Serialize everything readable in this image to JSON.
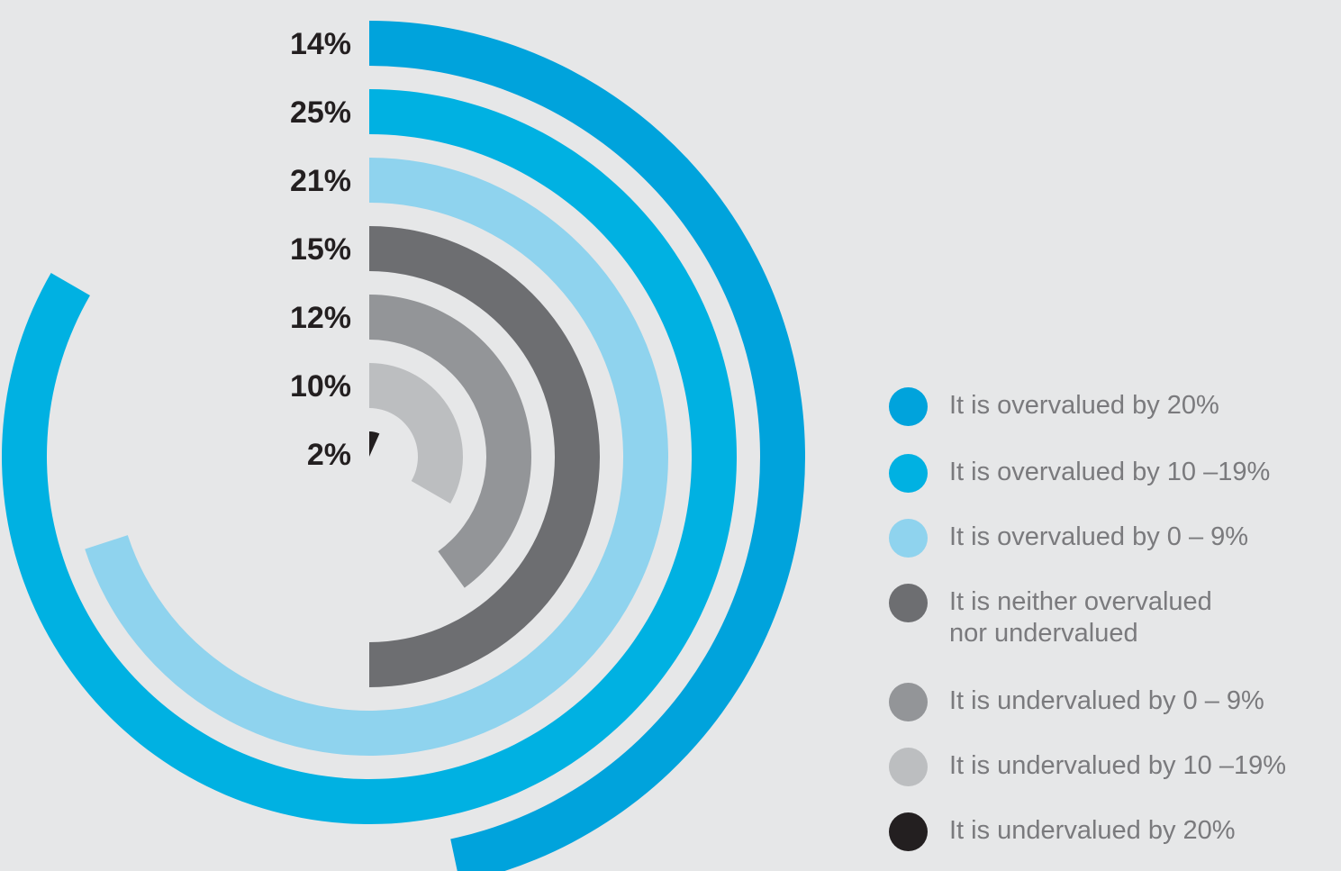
{
  "chart_data": {
    "type": "radial-bar",
    "title": "",
    "series": [
      {
        "name": "It is overvalued by 20%",
        "value": 14,
        "label": "14%",
        "color": "#00a3dc"
      },
      {
        "name": "It is overvalued by 10 –19%",
        "value": 25,
        "label": "25%",
        "color": "#00b1e2"
      },
      {
        "name": "It is overvalued by 0 – 9%",
        "value": 21,
        "label": "21%",
        "color": "#8fd3ee"
      },
      {
        "name": "It is neither overvalued\nnor undervalued",
        "value": 15,
        "label": "15%",
        "color": "#6d6e71"
      },
      {
        "name": "It is undervalued by 0 – 9%",
        "value": 12,
        "label": "12%",
        "color": "#939598"
      },
      {
        "name": "It is undervalued by 10 –19%",
        "value": 10,
        "label": "10%",
        "color": "#bcbec0"
      },
      {
        "name": "It is undervalued by 20%",
        "value": 2,
        "label": "2%",
        "color": "#231f20"
      }
    ],
    "value_scale_max": 30,
    "legend_position": "right"
  }
}
